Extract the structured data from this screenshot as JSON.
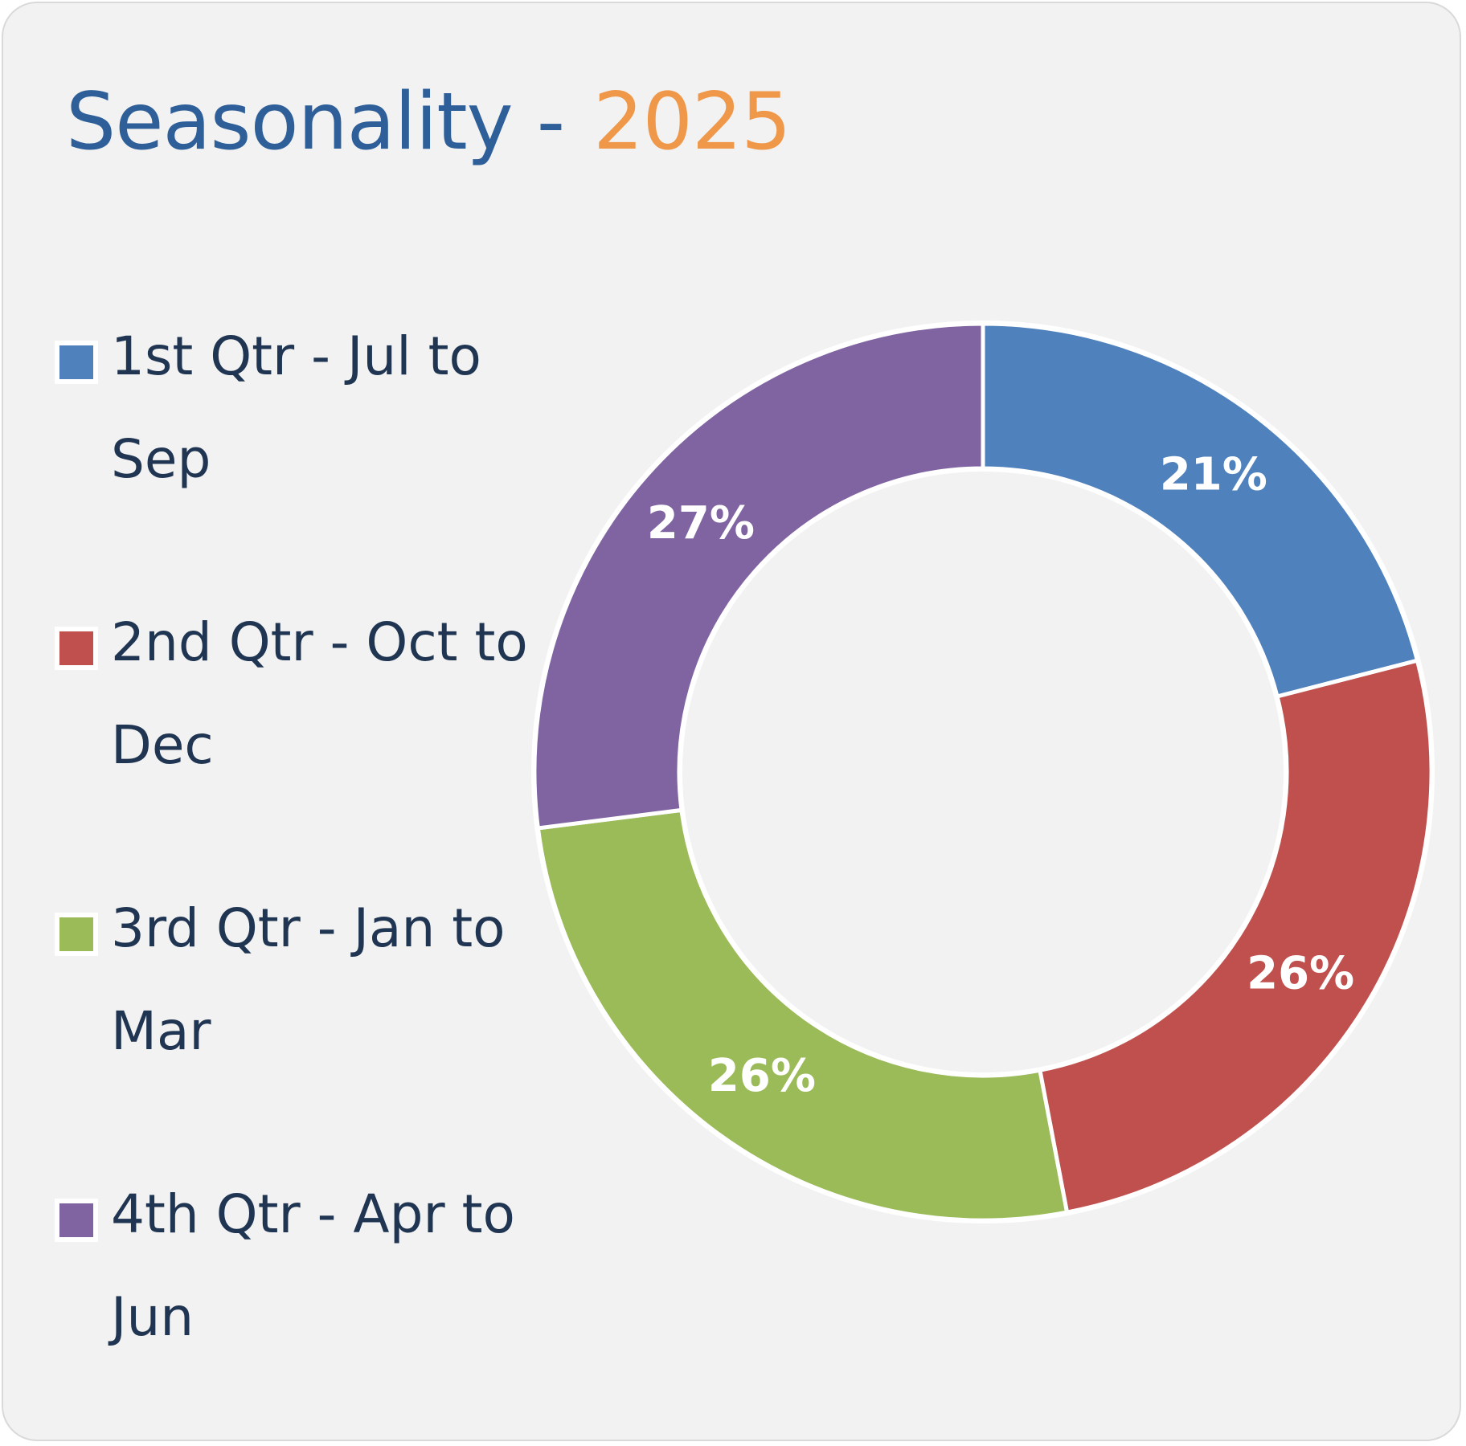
{
  "title": {
    "main": "Seasonality -",
    "year": "2025"
  },
  "colors": {
    "title": "#2e5f99",
    "year": "#f0984a",
    "background": "#f2f2f2"
  },
  "chart_data": {
    "type": "pie",
    "variant": "donut",
    "start_angle_deg": 0,
    "direction": "clockwise",
    "legend_position": "left",
    "slices": [
      {
        "label": "1st Qtr - Jul to Sep",
        "value": 21,
        "display": "21%",
        "color": "#4f81bd"
      },
      {
        "label": "2nd Qtr - Oct to Dec",
        "value": 26,
        "display": "26%",
        "color": "#c0504d"
      },
      {
        "label": "3rd Qtr - Jan to Mar",
        "value": 26,
        "display": "26%",
        "color": "#9bbb59"
      },
      {
        "label": "4th Qtr - Apr to Jun",
        "value": 27,
        "display": "27%",
        "color": "#8064a2"
      }
    ]
  }
}
